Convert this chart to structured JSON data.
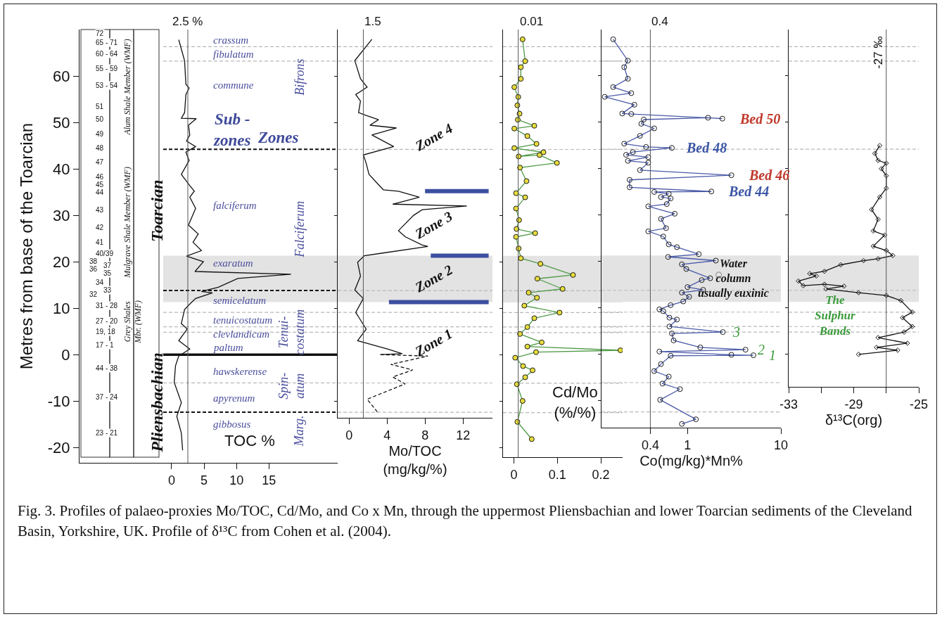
{
  "chart_data": [
    {
      "type": "line",
      "ylabel": "Metres from base of the Toarcian",
      "xlabel": "TOC %",
      "xlim": [
        -14.2,
        25.6
      ],
      "xticks": [
        0,
        5,
        10,
        15
      ],
      "ylim": [
        -23.3,
        70
      ],
      "yticks": [
        -20,
        -10,
        0,
        10,
        20,
        30,
        40,
        50,
        60
      ],
      "marker": "none",
      "series": [
        {
          "color": "#111111",
          "x": [
            1.1,
            2.0,
            2.2,
            2.7,
            2.2,
            2.0,
            1.5,
            3.8,
            2.6,
            2.8,
            2.3,
            3.7,
            2.2,
            2.7,
            1.5,
            2.8,
            3.5,
            2.8,
            3.7,
            2.6,
            4.1,
            3.3,
            4.6,
            2.3,
            4.9,
            3.6,
            18.4,
            10.2,
            7.2,
            4.6,
            6.3,
            3.7,
            2.8,
            2.0,
            1.5,
            2.4,
            1.1,
            2.8,
            1.1,
            0.6,
            0.4,
            1.5,
            0.8,
            1.5,
            1.7
          ],
          "values": [
            67.8,
            63.3,
            58.2,
            57.4,
            56.0,
            52.1,
            50.9,
            50.8,
            49.4,
            47.3,
            46.0,
            44.8,
            43.6,
            41.8,
            38.8,
            36.4,
            35.2,
            33.9,
            31.5,
            27.9,
            26.0,
            24.2,
            22.4,
            21.2,
            20.0,
            17.9,
            17.3,
            16.4,
            14.5,
            13.6,
            13.3,
            12.1,
            10.9,
            9.7,
            6.7,
            5.5,
            3.0,
            1.2,
            -0.3,
            -2.4,
            -6.0,
            -10.3,
            -13.3,
            -16.9,
            -20.6
          ]
        }
      ],
      "ref_lines": [
        {
          "axis": "x",
          "value": 2.5,
          "label": "2.5 %",
          "color": "#555555"
        },
        {
          "axis": "y",
          "value": 66.3,
          "color": "#b8b8b8",
          "line_style": "dashed"
        },
        {
          "axis": "y",
          "value": 63.2,
          "color": "#b8b8b8",
          "line_style": "dashed"
        },
        {
          "axis": "y",
          "value": 44.2,
          "color": "#111111",
          "line_style": "dashed"
        },
        {
          "axis": "y",
          "value": 13.8,
          "color": "#111111",
          "line_style": "dashed"
        },
        {
          "axis": "y",
          "value": 9.1,
          "color": "#b8b8b8",
          "line_style": "dashed"
        },
        {
          "axis": "y",
          "value": 6.0,
          "color": "#b8b8b8",
          "line_style": "dashed"
        },
        {
          "axis": "y",
          "value": 4.8,
          "color": "#b8b8b8",
          "line_style": "dashed"
        },
        {
          "axis": "y",
          "value": 0,
          "color": "#111111",
          "line_style": "solid"
        },
        {
          "axis": "y",
          "value": -6.1,
          "color": "#b8b8b8",
          "line_style": "dashed"
        },
        {
          "axis": "y",
          "value": -12.4,
          "color": "#111111",
          "line_style": "dashed"
        }
      ],
      "bands": [
        {
          "axis": "y",
          "from": 11.3,
          "to": 21.3,
          "color": "#e3e3e3"
        }
      ],
      "annotations": [
        "72",
        "65 - 71",
        "60 - 64",
        "55 - 59",
        "53 - 54",
        "51",
        "50",
        "49",
        "48",
        "47",
        "46",
        "45",
        "44",
        "43",
        "42",
        "41",
        "40/39",
        "38",
        "37",
        "36",
        "35",
        "34",
        "33",
        "32",
        "31 - 28",
        "27 - 20",
        "19, 18",
        "17 - 1",
        "44 - 38",
        "37 - 24",
        "23 - 21",
        "Alum Shale Member (WMF)",
        "Mulgrave Shale Member (WMF)",
        "Grey Shales\nMbr. (WMF)",
        "Toarcian",
        "Pliensbachian",
        "crassum",
        "fibulatum",
        "commune",
        "Sub -\nzones",
        "falciferum",
        "exaratum",
        "semicelatum",
        "tenuicostatum",
        "clevlandicum",
        "paltum",
        "hawskerense",
        "apyrenum",
        "gibbosus",
        "Zones",
        "Bifrons",
        "Falciferum",
        "Tenui-\ncostatum",
        "Spin-\natum",
        "Marg.",
        "Fig. 3. Profiles of palaeo-proxies Mo/TOC, Cd/Mo, and Co x Mn, through the uppermost Pliensbachian and lower Toarcian sediments of the Cleveland Basin, Yorkshire, UK.  Profile of δ¹³C from Cohen et al. (2004)."
      ]
    },
    {
      "type": "line",
      "xlabel": "Mo/TOC\n(mg/kg/%)",
      "xlim": [
        -1.2,
        15.1
      ],
      "xticks": [
        0,
        4,
        8,
        12
      ],
      "ylim": [
        -13.6,
        70
      ],
      "yticks": [
        -10,
        0,
        10,
        20,
        30,
        40,
        50,
        60
      ],
      "tick_labels": "x",
      "marker": "none",
      "series": [
        {
          "color": "#111111",
          "x": [
            2.4,
            0.6,
            1.2,
            1.9,
            0.7,
            1.2,
            1.0,
            1.8,
            3.1,
            2.2,
            5.0,
            2.4,
            4.7,
            1.5,
            1.8,
            2.1,
            3.6,
            5.2,
            7.4,
            4.6,
            12.4,
            7.7,
            6.8,
            5.2,
            5.9,
            7.7,
            8.3,
            3.3,
            1.6,
            0.9,
            1.2,
            0.6,
            1.5,
            0.7,
            1.8,
            0.9,
            4.1,
            5.6,
            3.3
          ],
          "values": [
            67.9,
            63.3,
            59.4,
            57.6,
            56.0,
            54.6,
            52.1,
            51.5,
            50.6,
            49.4,
            48.8,
            47.3,
            44.8,
            43.0,
            41.2,
            38.8,
            35.5,
            35.2,
            33.9,
            32.4,
            32.0,
            31.2,
            30.0,
            26.7,
            25.4,
            23.6,
            23.3,
            21.8,
            21.3,
            19.9,
            16.9,
            13.9,
            12.1,
            9.1,
            5.5,
            3.0,
            1.2,
            0.2,
            0.0
          ]
        },
        {
          "color": "#111111",
          "line_style": "dashed",
          "x": [
            3.3,
            8.3,
            4.4,
            6.7,
            4.6,
            5.9,
            1.9,
            3.0
          ],
          "values": [
            0.0,
            -0.3,
            -2.1,
            -3.3,
            -4.8,
            -6.3,
            -9.6,
            -12.4
          ]
        },
        {
          "color": "#3c4fa0",
          "x": [
            8.0,
            14.7
          ],
          "values": [
            35.2,
            35.2
          ]
        },
        {
          "color": "#3c4fa0",
          "x": [
            8.6,
            14.7
          ],
          "values": [
            21.3,
            21.3
          ]
        },
        {
          "color": "#3c4fa0",
          "x": [
            4.2,
            14.7
          ],
          "values": [
            11.3,
            11.3
          ]
        }
      ],
      "ref_lines": [
        {
          "axis": "x",
          "value": 1.5,
          "label": "1.5",
          "color": "#555555"
        },
        {
          "axis": "y",
          "value": 66.3,
          "color": "#b8b8b8",
          "line_style": "dashed"
        },
        {
          "axis": "y",
          "value": 63.2,
          "color": "#b8b8b8",
          "line_style": "dashed"
        },
        {
          "axis": "y",
          "value": 44.2,
          "color": "#b8b8b8",
          "line_style": "dashed"
        },
        {
          "axis": "y",
          "value": 13.8,
          "color": "#b8b8b8",
          "line_style": "dashed"
        },
        {
          "axis": "y",
          "value": 9.1,
          "color": "#b8b8b8",
          "line_style": "dashed"
        },
        {
          "axis": "y",
          "value": 6.0,
          "color": "#b8b8b8",
          "line_style": "dashed"
        },
        {
          "axis": "y",
          "value": 4.8,
          "color": "#b8b8b8",
          "line_style": "dashed"
        },
        {
          "axis": "y",
          "value": -6.1,
          "color": "#b8b8b8",
          "line_style": "dashed"
        },
        {
          "axis": "y",
          "value": -12.4,
          "color": "#b8b8b8",
          "line_style": "dashed"
        }
      ],
      "bands": [
        {
          "axis": "y",
          "from": 11.3,
          "to": 21.3,
          "color": "#e3e3e3"
        }
      ],
      "annotations": [
        "Zone 4",
        "Zone 3",
        "Zone 2",
        "Zone 1"
      ]
    },
    {
      "type": "line",
      "xlabel": "Cd/Mo\n(%/%)",
      "xlim": [
        -0.025,
        0.25
      ],
      "xticks": [
        0,
        0.1,
        0.2
      ],
      "ylim": [
        -22,
        70
      ],
      "yticks": [
        -20,
        -10,
        0,
        10,
        20,
        30,
        40,
        50,
        60
      ],
      "tick_labels": "x",
      "marker": "circle",
      "series": [
        {
          "color": "#4e9a45",
          "colors": [
            "#e6dc3c",
            "#e6dc3c",
            "#e6dc3c",
            "#e6dc3c",
            "#e6dc3c",
            "#e6dc3c",
            "#e6dc3c",
            "#e6dc3c",
            "#e6dc3c",
            "#e6dc3c",
            "#e6dc3c",
            "#e6dc3c",
            "#e6dc3c",
            "#e6dc3c",
            "#e6dc3c",
            "#e6dc3c",
            "#e6dc3c",
            "#e6dc3c",
            "#e6dc3c",
            "#e6dc3c",
            "#e6dc3c",
            "#e6dc3c",
            "#e6dc3c",
            "#e6dc3c",
            "#e6dc3c",
            "#e6dc3c",
            "#e6dc3c",
            "#e6dc3c",
            "#e6dc3c",
            "#e6dc3c",
            "#e6dc3c",
            "#e6dc3c",
            "#e6dc3c",
            "#e6dc3c",
            "#e6dc3c",
            "#e6dc3c",
            "#e6dc3c",
            "#e6dc3c",
            "#e6dc3c",
            "#e6dc3c",
            "#e6dc3c",
            "#e6dc3c",
            "#e6dc3c",
            "#e6dc3c",
            "#e6dc3c",
            "#e6dc3c",
            "#e6dc3c",
            "#e6dc3c",
            "#e6dc3c",
            "#e6dc3c",
            "#e6dc3c",
            "#e6dc3c"
          ],
          "x": [
            0.02,
            0.026,
            0.016,
            0.016,
            0.001,
            0.01,
            0.008,
            0.013,
            0.009,
            0.047,
            0.001,
            0.031,
            0.052,
            0.001,
            0.068,
            0.011,
            0.059,
            0.099,
            0.014,
            0.029,
            0.005,
            0.026,
            0.005,
            0.012,
            0.006,
            0.049,
            0.005,
            0.011,
            0.016,
            0.061,
            0.136,
            0.054,
            0.112,
            0.034,
            0.053,
            0.024,
            0.105,
            0.047,
            0.031,
            0.014,
            0.064,
            0.031,
            0.245,
            0.051,
            0.003,
            0.021,
            0.043,
            0.026,
            0.007,
            0.02,
            0.008,
            0.041
          ],
          "values": [
            67.9,
            63.2,
            61.9,
            59.4,
            57.6,
            55.5,
            53.7,
            51.9,
            50.6,
            49.3,
            48.7,
            47.1,
            45.4,
            44.5,
            43.6,
            42.7,
            43.0,
            41.3,
            40.3,
            37.4,
            34.8,
            33.9,
            31.5,
            29.0,
            27.1,
            26.2,
            25.4,
            22.9,
            20.8,
            19.6,
            17.2,
            16.4,
            14.2,
            13.4,
            12.3,
            10.6,
            9.1,
            7.9,
            6.0,
            4.5,
            2.7,
            1.8,
            1.0,
            0.6,
            -0.6,
            -2.4,
            -3.3,
            -4.8,
            -6.3,
            -9.9,
            -14.4,
            -18.1
          ]
        }
      ],
      "ref_lines": [
        {
          "axis": "x",
          "value": 0.01,
          "label": "0.01",
          "color": "#555555"
        },
        {
          "axis": "y",
          "value": 66.3,
          "color": "#b8b8b8",
          "line_style": "dashed"
        },
        {
          "axis": "y",
          "value": 63.2,
          "color": "#b8b8b8",
          "line_style": "dashed"
        },
        {
          "axis": "y",
          "value": 44.2,
          "color": "#b8b8b8",
          "line_style": "dashed"
        },
        {
          "axis": "y",
          "value": 13.8,
          "color": "#b8b8b8",
          "line_style": "dashed"
        },
        {
          "axis": "y",
          "value": 9.1,
          "color": "#b8b8b8",
          "line_style": "dashed"
        },
        {
          "axis": "y",
          "value": 6.0,
          "color": "#b8b8b8",
          "line_style": "dashed"
        },
        {
          "axis": "y",
          "value": 4.8,
          "color": "#b8b8b8",
          "line_style": "dashed"
        },
        {
          "axis": "y",
          "value": -6.1,
          "color": "#b8b8b8",
          "line_style": "dashed"
        },
        {
          "axis": "y",
          "value": -12.4,
          "color": "#b8b8b8",
          "line_style": "dashed"
        }
      ],
      "bands": [
        {
          "axis": "y",
          "from": 11.3,
          "to": 21.3,
          "color": "#e3e3e3"
        }
      ]
    },
    {
      "type": "line",
      "xlabel": "Co(mg/kg)*Mn%",
      "log": "x",
      "xlim": [
        0.12,
        10
      ],
      "xticks": [
        0.4,
        1,
        10
      ],
      "ylim": [
        -15.8,
        70
      ],
      "yticks": [
        -10,
        0,
        10,
        20,
        30,
        40,
        50,
        60
      ],
      "tick_labels": "x",
      "marker": "circle",
      "series": [
        {
          "color": "#4a5aa8",
          "x": [
            0.16,
            0.23,
            0.21,
            0.23,
            0.16,
            0.25,
            0.13,
            0.27,
            0.2,
            0.25,
            2.36,
            1.66,
            0.34,
            0.32,
            0.44,
            0.31,
            0.21,
            0.36,
            0.68,
            0.26,
            0.22,
            0.38,
            0.23,
            0.38,
            0.31,
            2.95,
            0.24,
            0.24,
            1.8,
            0.44,
            0.63,
            0.52,
            0.66,
            0.6,
            0.38,
            0.73,
            0.52,
            0.59,
            0.38,
            0.55,
            0.63,
            0.77,
            1.32,
            0.62,
            2.01,
            0.87,
            0.97,
            1.75,
            1.42,
            1.0,
            1.47,
            0.87,
            1.04,
            0.9,
            0.66,
            0.5,
            0.55,
            0.64,
            0.77,
            0.64,
            2.39,
            0.68,
            0.71,
            1.37,
            4.18,
            0.5,
            2.95,
            5.08,
            0.66,
            0.52,
            0.44,
            0.63,
            0.54,
            0.83,
            0.51,
            1.23,
            0.87
          ],
          "values": [
            67.9,
            63.3,
            61.9,
            59.4,
            57.6,
            56.3,
            55.5,
            53.8,
            51.9,
            51.8,
            50.8,
            51.0,
            50.6,
            49.7,
            48.7,
            47.1,
            45.4,
            44.7,
            44.5,
            43.6,
            43.0,
            42.5,
            41.7,
            41.3,
            39.7,
            38.6,
            37.6,
            36.0,
            35.1,
            35.0,
            34.6,
            33.9,
            33.6,
            32.4,
            31.9,
            30.3,
            29.2,
            27.2,
            26.5,
            25.4,
            23.7,
            23.1,
            21.6,
            21.0,
            20.2,
            19.4,
            18.4,
            16.4,
            16.0,
            14.5,
            13.9,
            13.3,
            12.4,
            11.4,
            10.6,
            9.7,
            9.3,
            7.9,
            7.5,
            6.0,
            4.8,
            4.5,
            3.0,
            1.5,
            1.0,
            0.6,
            -0.1,
            -0.2,
            -0.3,
            -2.1,
            -3.6,
            -4.8,
            -6.3,
            -7.5,
            -9.8,
            -14.0,
            -15.0
          ]
        },
        {
          "type": "scatter",
          "color": "#999999",
          "x": [
            2.16
          ],
          "values": [
            17.1
          ]
        }
      ],
      "ref_lines": [
        {
          "axis": "x",
          "value": 0.4,
          "label": "0.4",
          "color": "#555555"
        },
        {
          "axis": "y",
          "value": 66.3,
          "color": "#b8b8b8",
          "line_style": "dashed"
        },
        {
          "axis": "y",
          "value": 63.2,
          "color": "#b8b8b8",
          "line_style": "dashed"
        },
        {
          "axis": "y",
          "value": 44.2,
          "color": "#b8b8b8",
          "line_style": "dashed"
        },
        {
          "axis": "y",
          "value": 13.8,
          "color": "#b8b8b8",
          "line_style": "dashed"
        },
        {
          "axis": "y",
          "value": 9.1,
          "color": "#b8b8b8",
          "line_style": "dashed"
        },
        {
          "axis": "y",
          "value": 6.0,
          "color": "#b8b8b8",
          "line_style": "dashed"
        },
        {
          "axis": "y",
          "value": 4.8,
          "color": "#b8b8b8",
          "line_style": "dashed"
        },
        {
          "axis": "y",
          "value": -6.1,
          "color": "#b8b8b8",
          "line_style": "dashed"
        },
        {
          "axis": "y",
          "value": -12.4,
          "color": "#b8b8b8",
          "line_style": "dashed"
        }
      ],
      "bands": [
        {
          "axis": "y",
          "from": 11.3,
          "to": 21.3,
          "color": "#e3e3e3"
        }
      ],
      "annotations": [
        {
          "text": "Bed 50",
          "x": 2.36,
          "y": 50.8
        },
        {
          "text": "Bed 48",
          "x": 0.68,
          "y": 44.5
        },
        {
          "text": "Bed 46",
          "x": 2.95,
          "y": 38.6
        },
        {
          "text": "Bed 44",
          "x": 1.8,
          "y": 35.1
        },
        {
          "text": "3",
          "x": 2.39,
          "y": 4.8
        },
        {
          "text": "2",
          "x": 4.18,
          "y": 1.0
        },
        {
          "text": "1",
          "x": 5.08,
          "y": -0.2
        },
        "Water\ncolumn\nusually euxinic"
      ]
    },
    {
      "type": "line",
      "xlabel": "δ¹³C(org)",
      "xlim": [
        -33,
        -25
      ],
      "xticks": [
        -33,
        {
          "value": -31,
          "label": null
        },
        -29,
        {
          "value": -27,
          "label": null
        },
        -25
      ],
      "ylim": [
        -7,
        70
      ],
      "yticks": [
        0,
        10,
        20,
        30,
        40,
        50,
        60
      ],
      "tick_labels": "x",
      "marker": "diamond",
      "series": [
        {
          "color": "#111111",
          "x": [
            -27.4,
            -27.7,
            -27.5,
            -27.0,
            -27.3,
            -27.0,
            -27.0,
            -27.4,
            -27.9,
            -27.5,
            -27.8,
            -27.1,
            -27.8,
            -27.0,
            -26.6,
            -27.5,
            -28.4,
            -29.8,
            -30.8,
            -31.7,
            -31.3,
            -32.4,
            -32.1,
            -30.8,
            -29.6,
            -30.7,
            -28.7,
            -27.0,
            -26.1,
            -25.4,
            -26.0,
            -25.4,
            -25.9,
            -27.5,
            -25.7,
            -27.6,
            -26.3,
            -28.7
          ],
          "values": [
            45.0,
            43.3,
            41.8,
            41.2,
            40.0,
            38.5,
            35.8,
            33.9,
            31.2,
            29.1,
            26.6,
            25.7,
            23.3,
            22.4,
            21.3,
            20.6,
            20.2,
            19.3,
            17.9,
            17.4,
            16.9,
            15.8,
            14.8,
            15.1,
            14.7,
            14.1,
            13.3,
            12.7,
            11.6,
            9.1,
            7.9,
            6.0,
            4.8,
            3.6,
            2.4,
            1.5,
            0.9,
            0.0
          ]
        }
      ],
      "ref_lines": [
        {
          "axis": "x",
          "value": -27,
          "label": "-27 ‰",
          "color": "#555555"
        },
        {
          "axis": "y",
          "value": 66.3,
          "color": "#b8b8b8",
          "line_style": "dashed"
        },
        {
          "axis": "y",
          "value": 63.2,
          "color": "#b8b8b8",
          "line_style": "dashed"
        },
        {
          "axis": "y",
          "value": 44.2,
          "color": "#b8b8b8",
          "line_style": "dashed"
        },
        {
          "axis": "y",
          "value": 13.8,
          "color": "#b8b8b8",
          "line_style": "dashed"
        },
        {
          "axis": "y",
          "value": 9.1,
          "color": "#b8b8b8",
          "line_style": "dashed"
        },
        {
          "axis": "y",
          "value": 6.0,
          "color": "#b8b8b8",
          "line_style": "dashed"
        },
        {
          "axis": "y",
          "value": 4.8,
          "color": "#b8b8b8",
          "line_style": "dashed"
        }
      ],
      "bands": [
        {
          "axis": "y",
          "from": 11.3,
          "to": 21.3,
          "color": "#e3e3e3"
        }
      ],
      "annotations": [
        "The\nSulphur\nBands"
      ]
    }
  ]
}
